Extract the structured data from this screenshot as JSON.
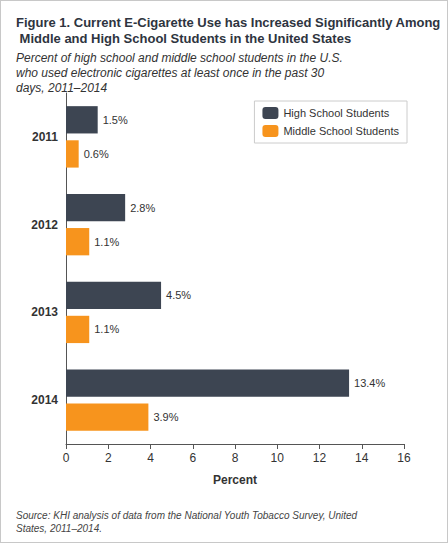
{
  "chart_data": {
    "type": "bar",
    "title": "Figure 1. Current E-Cigarette Use has Increased Significantly Among Middle and High School Students in the United States",
    "subtitle": "Percent of high school and middle school students in the U.S. who used electronic cigarettes at least once in the past 30 days, 2011–2014",
    "x_label": "Percent",
    "note": "Source: KHI analysis of data from the National Youth Tobacco Survey, United States, 2011–2014.",
    "orientation": "horizontal",
    "categories": [
      "2011",
      "2012",
      "2013",
      "2014"
    ],
    "series": [
      {
        "name": "High School Students",
        "color": "#3d4552",
        "values": [
          1.5,
          2.8,
          4.5,
          13.4
        ],
        "value_labels": [
          "1.5%",
          "2.8%",
          "4.5%",
          "13.4%"
        ]
      },
      {
        "name": "Middle School Students",
        "color": "#f7941d",
        "values": [
          0.6,
          1.1,
          1.1,
          3.9
        ],
        "value_labels": [
          "0.6%",
          "1.1%",
          "1.1%",
          "3.9%"
        ]
      }
    ],
    "xlim": [
      0,
      16
    ],
    "xticks": [
      0,
      2,
      4,
      6,
      8,
      10,
      12,
      14,
      16
    ],
    "grid": false,
    "legend": "upper right",
    "data_labels": true
  }
}
